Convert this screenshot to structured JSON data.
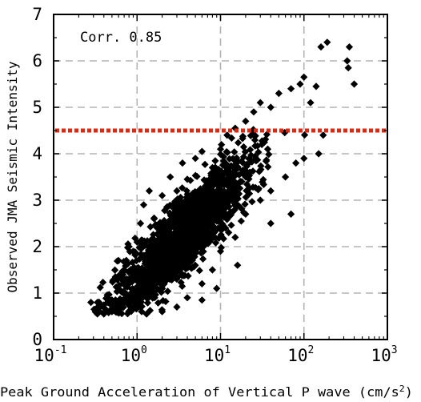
{
  "chart_data": {
    "type": "scatter",
    "annotation": "Corr. 0.85",
    "xlabel": "Peak Ground Acceleration of Vertical P wave (cm/s",
    "xlabel_unit_exponent": "2",
    "xlabel_close": ")",
    "ylabel": "Observed JMA Seismic Intensity",
    "x_scale": "log",
    "xlim": [
      0.1,
      1000
    ],
    "ylim": [
      0,
      7
    ],
    "grid": true,
    "x_ticks": [
      {
        "base": "10",
        "exp": "-1",
        "value": 0.1
      },
      {
        "base": "10",
        "exp": "0",
        "value": 1
      },
      {
        "base": "10",
        "exp": "1",
        "value": 10
      },
      {
        "base": "10",
        "exp": "2",
        "value": 100
      },
      {
        "base": "10",
        "exp": "3",
        "value": 1000
      }
    ],
    "y_ticks": [
      "0",
      "1",
      "2",
      "3",
      "4",
      "5",
      "6",
      "7"
    ],
    "threshold_line": {
      "y": 4.5,
      "color": "#ff1a00",
      "style": "dotted"
    },
    "marker": {
      "shape": "diamond",
      "color": "#000000"
    },
    "approx_point_count": 1900,
    "trend": {
      "description": "intensity increases roughly linearly with log10 of P-wave peak acceleration",
      "intercept": 1.25,
      "slope_per_decade": 1.78,
      "spread_sd": 0.45
    },
    "points": [
      [
        0.28,
        0.8
      ],
      [
        0.35,
        0.7
      ],
      [
        0.4,
        0.55
      ],
      [
        0.45,
        0.95
      ],
      [
        0.5,
        0.6
      ],
      [
        0.55,
        1.35
      ],
      [
        0.6,
        1.7
      ],
      [
        0.7,
        1.5
      ],
      [
        0.8,
        2.0
      ],
      [
        0.9,
        1.9
      ],
      [
        1.0,
        2.1
      ],
      [
        1.1,
        2.5
      ],
      [
        1.2,
        2.9
      ],
      [
        1.4,
        3.2
      ],
      [
        1.6,
        2.6
      ],
      [
        2.0,
        3.1
      ],
      [
        2.5,
        3.5
      ],
      [
        3.0,
        3.2
      ],
      [
        3.5,
        3.8
      ],
      [
        4.0,
        3.45
      ],
      [
        5.0,
        3.9
      ],
      [
        6.0,
        4.05
      ],
      [
        8.0,
        3.7
      ],
      [
        10.0,
        4.1
      ],
      [
        12.0,
        4.4
      ],
      [
        15.0,
        4.55
      ],
      [
        20.0,
        4.7
      ],
      [
        25.0,
        4.9
      ],
      [
        30.0,
        5.1
      ],
      [
        40.0,
        5.0
      ],
      [
        50.0,
        5.3
      ],
      [
        70.0,
        5.4
      ],
      [
        90.0,
        5.5
      ],
      [
        100.0,
        5.65
      ],
      [
        120.0,
        5.1
      ],
      [
        140.0,
        5.45
      ],
      [
        160.0,
        6.3
      ],
      [
        190.0,
        6.4
      ],
      [
        350.0,
        6.3
      ],
      [
        330.0,
        6.0
      ],
      [
        340.0,
        5.85
      ],
      [
        400.0,
        5.5
      ],
      [
        1.3,
        0.55
      ],
      [
        2.0,
        0.6
      ],
      [
        3.0,
        0.7
      ],
      [
        4.0,
        0.9
      ],
      [
        6.0,
        1.2
      ],
      [
        8.0,
        1.5
      ],
      [
        10.0,
        1.9
      ],
      [
        15.0,
        2.2
      ],
      [
        20.0,
        2.7
      ],
      [
        30.0,
        3.0
      ],
      [
        40.0,
        3.2
      ],
      [
        60.0,
        3.5
      ],
      [
        80.0,
        3.8
      ],
      [
        100.0,
        3.9
      ],
      [
        150.0,
        4.0
      ],
      [
        170.0,
        4.4
      ],
      [
        25.0,
        4.4
      ],
      [
        70.0,
        2.7
      ],
      [
        40.0,
        2.5
      ],
      [
        16.0,
        1.6
      ],
      [
        9.0,
        1.1
      ],
      [
        6.0,
        0.85
      ],
      [
        3.5,
        2.5
      ],
      [
        2.5,
        1.8
      ],
      [
        5.0,
        2.3
      ],
      [
        7.0,
        2.6
      ],
      [
        12.0,
        3.0
      ],
      [
        18.0,
        3.4
      ],
      [
        1.5,
        1.2
      ],
      [
        0.9,
        1.0
      ]
    ]
  }
}
